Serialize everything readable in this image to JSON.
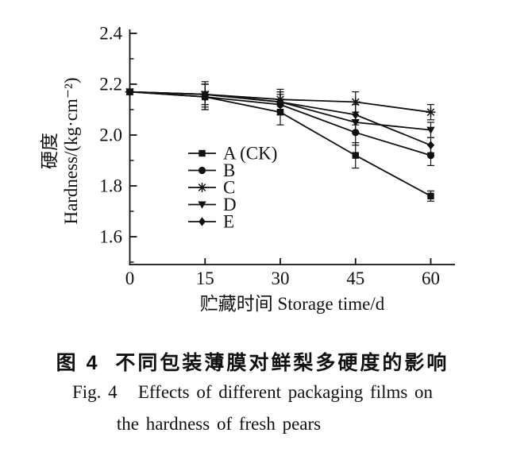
{
  "figure": {
    "caption_zh": "图 4  不同包装薄膜对鲜梨多硬度的影响",
    "caption_en_line1": "Fig. 4   Effects of different packaging films on",
    "caption_en_line2": "the hardness of fresh pears"
  },
  "chart_data": {
    "type": "line",
    "title": "",
    "xlabel": "贮藏时间 Storage time/d",
    "ylabel_zh": "硬度",
    "ylabel_en": "Hardness/(kg·cm⁻²)",
    "x": [
      0,
      15,
      30,
      45,
      60
    ],
    "xticks": [
      15,
      30,
      45,
      60
    ],
    "xtick_labels": [
      "0",
      "15",
      "30",
      "45",
      "60"
    ],
    "yticks": [
      2.4,
      2.2,
      2.0,
      1.8,
      1.6
    ],
    "yticks_minor": [
      2.3,
      2.1,
      1.9,
      1.7,
      1.5
    ],
    "ylim": [
      1.49,
      2.42
    ],
    "xlim": [
      0,
      65
    ],
    "grid": false,
    "legend_position": "inside-center-left",
    "line_color": "#111111",
    "series": [
      {
        "name": "A (CK)",
        "marker": "square",
        "values": [
          2.17,
          2.15,
          2.09,
          1.92,
          1.76
        ],
        "errors": [
          0,
          0.05,
          0.05,
          0.05,
          0.02
        ]
      },
      {
        "name": "B",
        "marker": "circle",
        "values": [
          2.17,
          2.15,
          2.12,
          2.01,
          1.92
        ],
        "errors": [
          0,
          0.05,
          0.04,
          0.05,
          0.04
        ]
      },
      {
        "name": "C",
        "marker": "asterisk",
        "values": [
          2.17,
          2.16,
          2.14,
          2.13,
          2.09
        ],
        "errors": [
          0,
          0.05,
          0.04,
          0.04,
          0.03
        ]
      },
      {
        "name": "D",
        "marker": "triangle-down",
        "values": [
          2.17,
          2.16,
          2.13,
          2.05,
          2.02
        ],
        "errors": [
          0,
          0.04,
          0.04,
          0.04,
          0.03
        ]
      },
      {
        "name": "E",
        "marker": "diamond",
        "values": [
          2.17,
          2.16,
          2.13,
          2.08,
          1.96
        ],
        "errors": [
          0,
          0.04,
          0.04,
          0.04,
          0.03
        ]
      }
    ]
  }
}
